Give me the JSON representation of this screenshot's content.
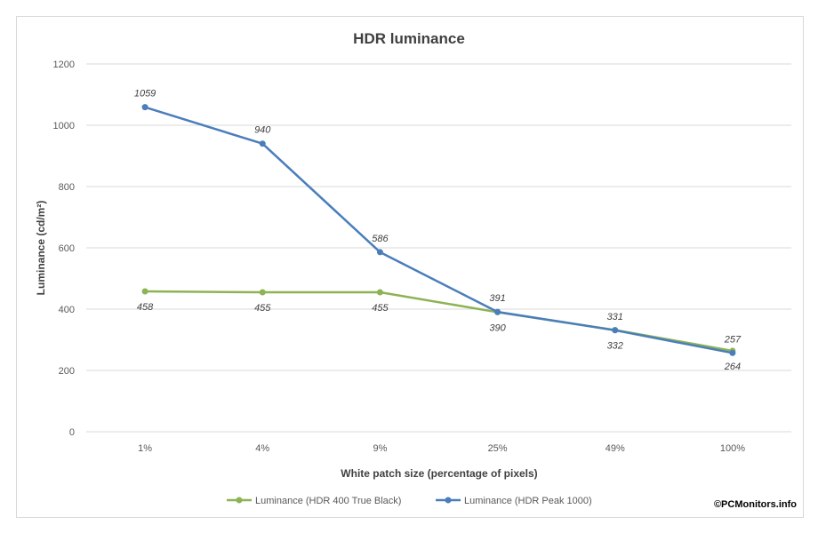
{
  "chart_data": {
    "type": "line",
    "title": "HDR luminance",
    "xlabel": "White patch size (percentage of pixels)",
    "ylabel": "Luminance (cd/m²)",
    "categories": [
      "1%",
      "4%",
      "9%",
      "25%",
      "49%",
      "100%"
    ],
    "ylim": [
      0,
      1200
    ],
    "yticks": [
      0,
      200,
      400,
      600,
      800,
      1000,
      1200
    ],
    "grid": true,
    "legend": "bottom",
    "series": [
      {
        "name": "Luminance (HDR 400 True Black)",
        "color": "#8db354",
        "values": [
          458,
          455,
          455,
          390,
          332,
          264
        ],
        "labels": [
          "458",
          "455",
          "455",
          "390",
          "332",
          "264"
        ],
        "label_position": "below"
      },
      {
        "name": "Luminance (HDR Peak 1000)",
        "color": "#4a7ebb",
        "values": [
          1059,
          940,
          586,
          391,
          331,
          257
        ],
        "labels": [
          "1059",
          "940",
          "586",
          "391",
          "331",
          "257"
        ],
        "label_position": "above"
      }
    ]
  },
  "watermark": "©PCMonitors.info"
}
